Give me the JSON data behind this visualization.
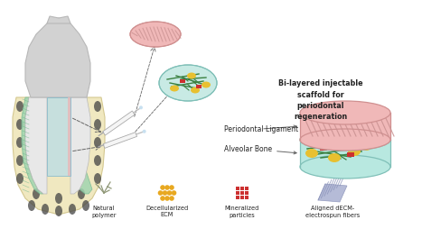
{
  "bg_color": "#ffffff",
  "tooth_color": "#d2d2d2",
  "tooth_edge": "#b8b8b8",
  "bone_color": "#f0e8c0",
  "bone_edge": "#d4c890",
  "pdl_color": "#a0d4b0",
  "pdl_edge": "#70b890",
  "highlight_blue": "#b8dce8",
  "highlight_blue_edge": "#80b8cc",
  "highlight_pink": "#e8b8b8",
  "scaffold_top_fill": "#f0b8b8",
  "scaffold_top_edge": "#d09090",
  "scaffold_bot_fill": "#b8e8e0",
  "scaffold_bot_edge": "#80c0b8",
  "hatch_color": "#c89090",
  "green_fiber": "#3a8040",
  "yellow_blob": "#e8c030",
  "red_rect": "#cc3030",
  "legend_natural_color": "#909878",
  "legend_decell_color": "#e8a820",
  "legend_mineral_color": "#cc3030",
  "legend_fiber_fill": "#a8b0d0",
  "legend_fiber_edge": "#8890b8",
  "text_color": "#222222",
  "arrow_color": "#666666",
  "syringe_body": "#f5f5f5",
  "syringe_edge": "#aaaaaa",
  "syringe_needle": "#c0c0c0",
  "syringe_drop": "#c8e0f0",
  "small_dish_fill": "#c8eae4",
  "small_dish_edge": "#80c0b8",
  "top_disk_fill": "#f0b8b8",
  "top_disk_edge": "#d09090",
  "label_periodontal": "Periodontal Ligament",
  "label_alveolar": "Alveolar Bone",
  "label_bilayered": "Bi-layered injectable\nscaffold for\nperiodontal\nregeneration",
  "legend_labels": [
    "Natural\npolymer",
    "Decellularized\nECM",
    "Mineralized\nparticles",
    "Aligned dECM-\nelectrospun fibers"
  ]
}
